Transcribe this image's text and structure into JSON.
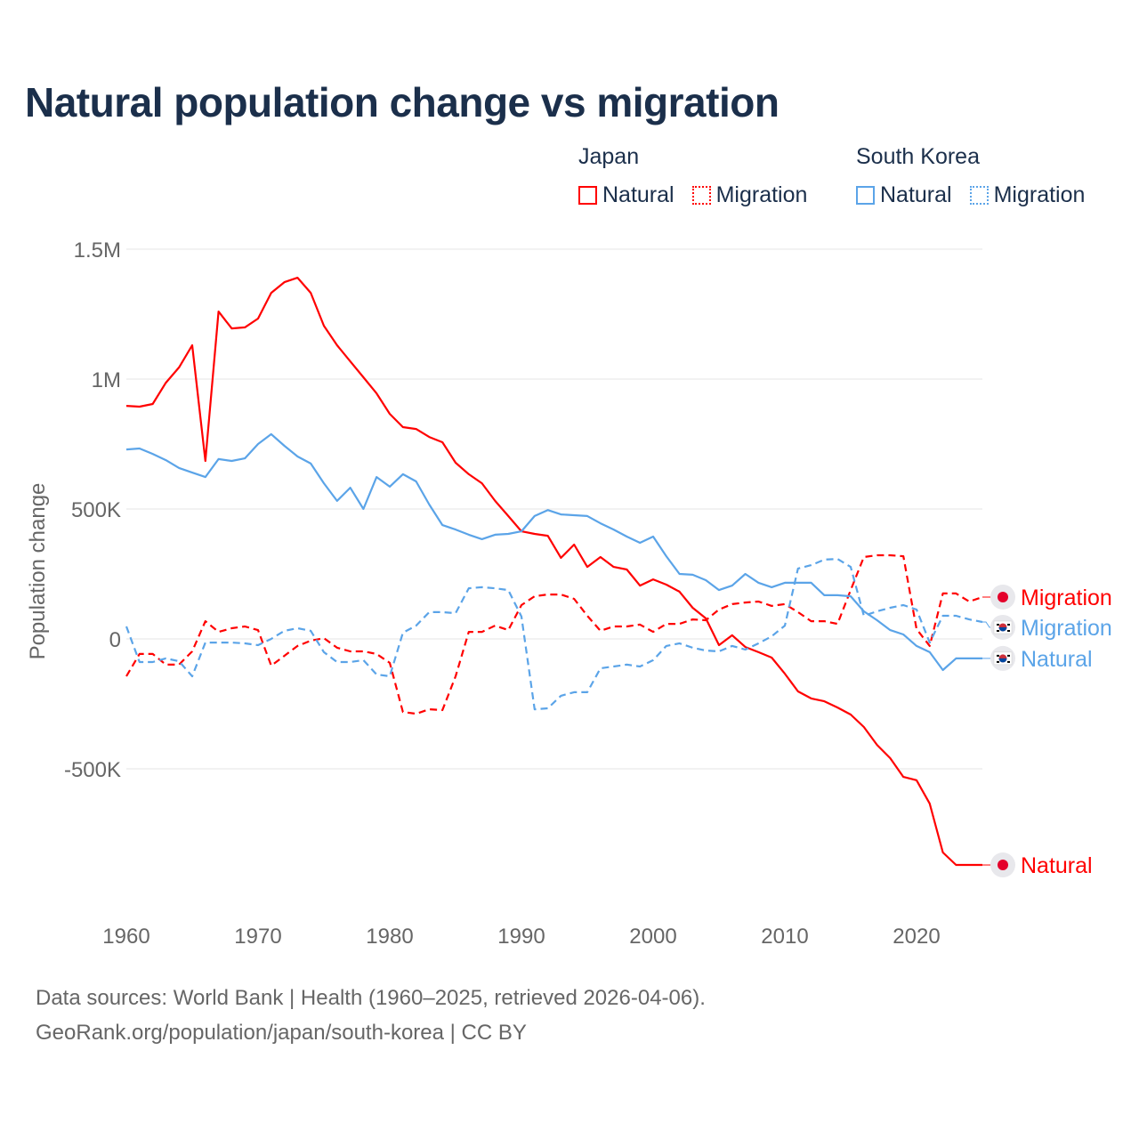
{
  "title": "Natural population change vs migration",
  "legend": {
    "groups": [
      {
        "name": "Japan",
        "items": [
          {
            "label": "Natural",
            "style": "solid",
            "color": "#ff0000"
          },
          {
            "label": "Migration",
            "style": "dotted",
            "color": "#ff0000"
          }
        ]
      },
      {
        "name": "South Korea",
        "items": [
          {
            "label": "Natural",
            "style": "solid",
            "color": "#5ba4e8"
          },
          {
            "label": "Migration",
            "style": "dotted",
            "color": "#5ba4e8"
          }
        ]
      }
    ]
  },
  "footer": {
    "line1": "Data sources: World Bank | Health (1960–2025, retrieved 2026-04-06).",
    "line2": "GeoRank.org/population/japan/south-korea | CC BY"
  },
  "chart_data": {
    "type": "line",
    "title": "Natural population change vs migration",
    "xlabel": "",
    "ylabel": "Population change",
    "xlim": [
      1960,
      2025
    ],
    "ylim": [
      -1000000,
      1500000
    ],
    "x_ticks": [
      1960,
      1970,
      1980,
      1990,
      2000,
      2010,
      2020
    ],
    "y_ticks": [
      {
        "value": 1500000,
        "label": "1.5M"
      },
      {
        "value": 1000000,
        "label": "1M"
      },
      {
        "value": 500000,
        "label": "500K"
      },
      {
        "value": 0,
        "label": "0"
      },
      {
        "value": -500000,
        "label": "-500K"
      }
    ],
    "grid": true,
    "legend_position": "top-right",
    "x_start": 1960,
    "series": [
      {
        "name": "Japan Natural",
        "country": "Japan",
        "end_label": "Natural",
        "color": "#ff0000",
        "dash": false,
        "values_k": [
          897,
          894,
          904,
          986,
          1045,
          1130,
          685,
          1260,
          1195,
          1199,
          1233,
          1332,
          1373,
          1390,
          1332,
          1205,
          1130,
          1068,
          1007,
          945,
          866,
          815,
          808,
          777,
          757,
          678,
          634,
          599,
          531,
          473,
          414,
          404,
          397,
          312,
          363,
          277,
          315,
          277,
          267,
          205,
          229,
          209,
          182,
          120,
          79,
          -24,
          14,
          -31,
          -51,
          -72,
          -134,
          -202,
          -229,
          -240,
          -264,
          -291,
          -339,
          -408,
          -459,
          -531,
          -544,
          -634,
          -822,
          -870,
          -870,
          -870
        ]
      },
      {
        "name": "Japan Migration",
        "country": "Japan",
        "end_label": "Migration",
        "color": "#ff0000",
        "dash": true,
        "values_k": [
          -144,
          -58,
          -58,
          -99,
          -99,
          -48,
          68,
          27,
          41,
          48,
          34,
          -103,
          -65,
          -27,
          -7,
          3,
          -34,
          -48,
          -48,
          -58,
          -92,
          -281,
          -288,
          -271,
          -274,
          -144,
          27,
          27,
          51,
          34,
          130,
          164,
          171,
          171,
          154,
          89,
          31,
          48,
          48,
          55,
          27,
          58,
          58,
          75,
          72,
          113,
          134,
          140,
          144,
          127,
          134,
          103,
          68,
          68,
          58,
          188,
          315,
          322,
          322,
          318,
          38,
          -27,
          175,
          175,
          144,
          161
        ]
      },
      {
        "name": "South Korea Natural",
        "country": "South Korea",
        "end_label": "Natural",
        "color": "#5ba4e8",
        "dash": false,
        "values_k": [
          729,
          733,
          712,
          688,
          658,
          640,
          623,
          692,
          685,
          695,
          750,
          788,
          743,
          702,
          675,
          599,
          531,
          582,
          500,
          623,
          586,
          634,
          606,
          517,
          438,
          421,
          401,
          384,
          401,
          404,
          414,
          473,
          496,
          479,
          476,
          473,
          445,
          421,
          394,
          370,
          394,
          318,
          250,
          247,
          226,
          188,
          205,
          250,
          216,
          199,
          216,
          216,
          216,
          168,
          168,
          164,
          106,
          72,
          34,
          17,
          -27,
          -51,
          -120,
          -75,
          -75,
          -75
        ]
      },
      {
        "name": "South Korea Migration",
        "country": "South Korea",
        "end_label": "Migration",
        "color": "#5ba4e8",
        "dash": true,
        "values_k": [
          48,
          -89,
          -89,
          -75,
          -86,
          -144,
          -14,
          -14,
          -14,
          -17,
          -24,
          0,
          31,
          41,
          31,
          -51,
          -89,
          -89,
          -82,
          -137,
          -144,
          24,
          51,
          103,
          103,
          99,
          195,
          199,
          195,
          188,
          86,
          -271,
          -267,
          -219,
          -205,
          -205,
          -113,
          -106,
          -99,
          -106,
          -82,
          -27,
          -17,
          -34,
          -45,
          -48,
          -27,
          -41,
          -17,
          10,
          51,
          271,
          284,
          305,
          308,
          277,
          89,
          106,
          120,
          130,
          113,
          -14,
          89,
          89,
          75,
          65
        ]
      }
    ]
  }
}
